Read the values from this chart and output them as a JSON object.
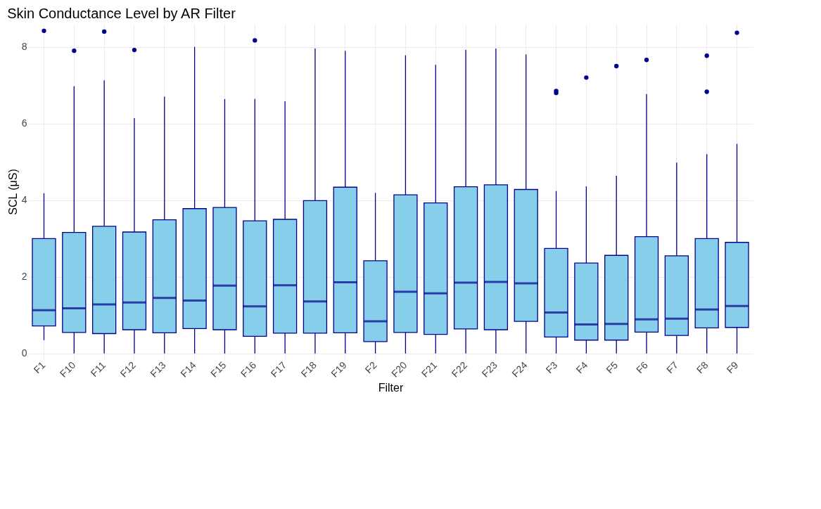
{
  "chart_data": {
    "type": "box",
    "title": "Skin Conductance Level by AR Filter",
    "xlabel": "Filter",
    "ylabel": "SCL (μS)",
    "categories": [
      "F1",
      "F10",
      "F11",
      "F12",
      "F13",
      "F14",
      "F15",
      "F16",
      "F17",
      "F18",
      "F19",
      "F2",
      "F20",
      "F21",
      "F22",
      "F23",
      "F24",
      "F3",
      "F4",
      "F5",
      "F6",
      "F7",
      "F8",
      "F9"
    ],
    "color": "#87ceeb",
    "boxes": [
      {
        "low": 0.35,
        "q1": 0.72,
        "median": 1.13,
        "q3": 3.0,
        "high": 4.18,
        "outliers": [
          8.42
        ]
      },
      {
        "low": 0,
        "q1": 0.55,
        "median": 1.18,
        "q3": 3.16,
        "high": 6.97,
        "outliers": [
          7.9
        ]
      },
      {
        "low": 0,
        "q1": 0.52,
        "median": 1.28,
        "q3": 3.32,
        "high": 7.13,
        "outliers": [
          8.4
        ]
      },
      {
        "low": 0,
        "q1": 0.62,
        "median": 1.33,
        "q3": 3.17,
        "high": 6.14,
        "outliers": [
          7.92
        ]
      },
      {
        "low": 0,
        "q1": 0.54,
        "median": 1.45,
        "q3": 3.49,
        "high": 6.7
      },
      {
        "low": 0,
        "q1": 0.65,
        "median": 1.38,
        "q3": 3.78,
        "high": 8.0
      },
      {
        "low": 0,
        "q1": 0.62,
        "median": 1.77,
        "q3": 3.81,
        "high": 6.64
      },
      {
        "low": 0,
        "q1": 0.45,
        "median": 1.23,
        "q3": 3.46,
        "high": 6.64,
        "outliers": [
          8.17
        ]
      },
      {
        "low": 0,
        "q1": 0.53,
        "median": 1.78,
        "q3": 3.5,
        "high": 6.58
      },
      {
        "low": 0,
        "q1": 0.53,
        "median": 1.36,
        "q3": 3.99,
        "high": 7.96
      },
      {
        "low": 0,
        "q1": 0.54,
        "median": 1.86,
        "q3": 4.34,
        "high": 7.9
      },
      {
        "low": 0,
        "q1": 0.31,
        "median": 0.84,
        "q3": 2.42,
        "high": 4.19
      },
      {
        "low": 0,
        "q1": 0.55,
        "median": 1.61,
        "q3": 4.14,
        "high": 7.78
      },
      {
        "low": 0,
        "q1": 0.5,
        "median": 1.57,
        "q3": 3.93,
        "high": 7.53
      },
      {
        "low": 0,
        "q1": 0.64,
        "median": 1.85,
        "q3": 4.35,
        "high": 7.92
      },
      {
        "low": 0,
        "q1": 0.62,
        "median": 1.87,
        "q3": 4.4,
        "high": 7.96
      },
      {
        "low": 0,
        "q1": 0.84,
        "median": 1.83,
        "q3": 4.28,
        "high": 7.8
      },
      {
        "low": 0,
        "q1": 0.43,
        "median": 1.07,
        "q3": 2.74,
        "high": 4.24,
        "outliers": [
          6.85,
          6.8
        ]
      },
      {
        "low": 0,
        "q1": 0.35,
        "median": 0.76,
        "q3": 2.36,
        "high": 4.36,
        "outliers": [
          7.2
        ]
      },
      {
        "low": 0,
        "q1": 0.35,
        "median": 0.77,
        "q3": 2.56,
        "high": 4.64,
        "outliers": [
          7.5
        ]
      },
      {
        "low": 0,
        "q1": 0.56,
        "median": 0.89,
        "q3": 3.05,
        "high": 6.77,
        "outliers": [
          7.66
        ]
      },
      {
        "low": 0,
        "q1": 0.47,
        "median": 0.91,
        "q3": 2.55,
        "high": 4.98
      },
      {
        "low": 0,
        "q1": 0.67,
        "median": 1.15,
        "q3": 3.0,
        "high": 5.2,
        "outliers": [
          7.77,
          6.83
        ]
      },
      {
        "low": 0,
        "q1": 0.68,
        "median": 1.24,
        "q3": 2.9,
        "high": 5.47,
        "outliers": [
          8.37
        ]
      }
    ],
    "ylim": [
      -0.15,
      8.6
    ],
    "yticks": [
      0,
      2,
      4,
      6,
      8
    ],
    "grid": true
  }
}
